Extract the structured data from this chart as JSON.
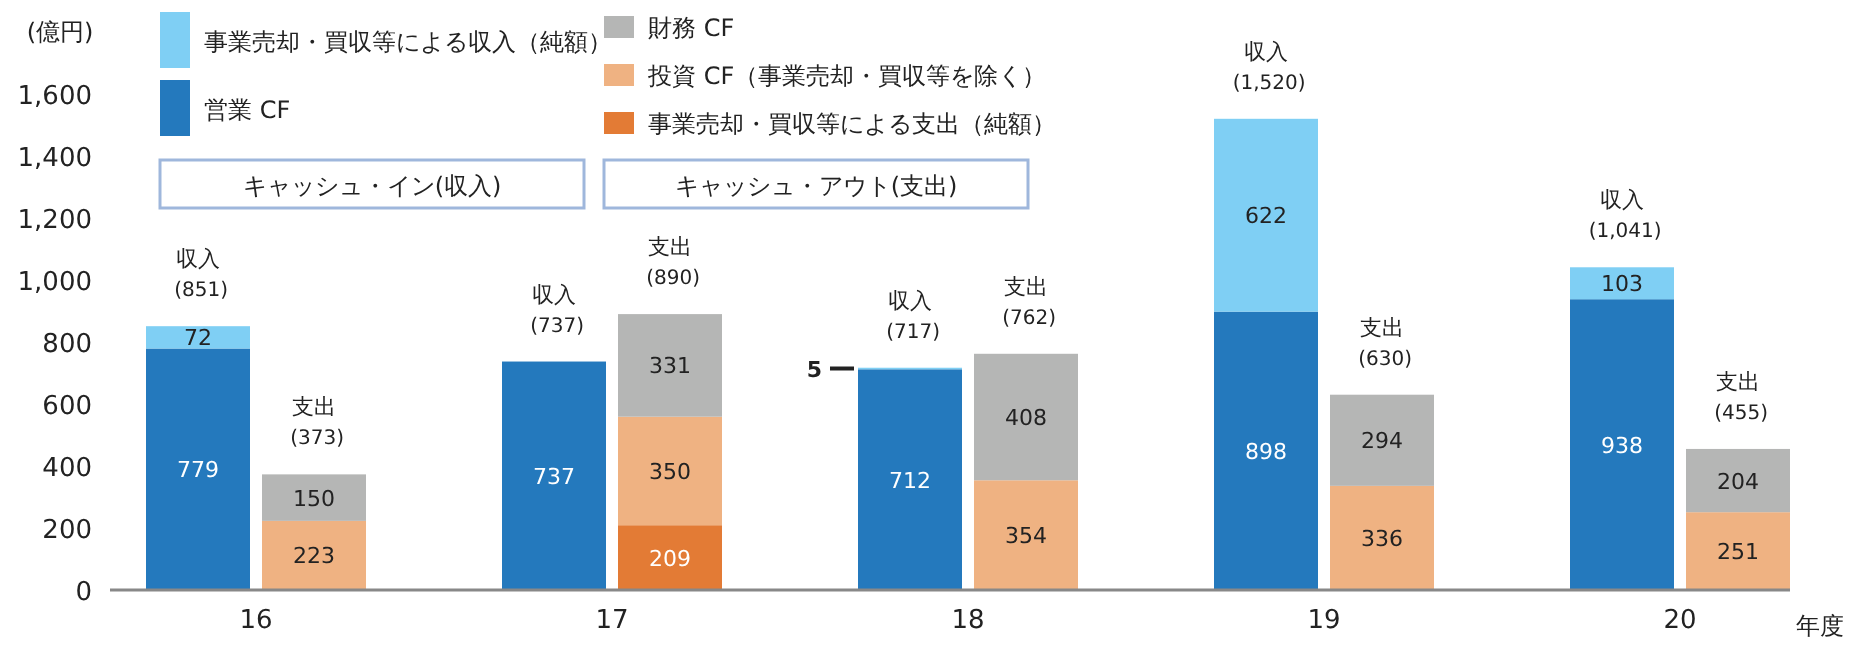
{
  "chart_data": {
    "type": "bar",
    "stacked": true,
    "ylabel": "(億円)",
    "xlabel": "年度",
    "categories": [
      "収入 (851)",
      "支出 (373)",
      "収入 (737)",
      "支出 (890)",
      "収入 (717)",
      "支出 (762)",
      "収入 (1,520)",
      "支出 (630)",
      "収入 (1,041)",
      "支出 (455)"
    ],
    "series": [
      {
        "name": "営業 CF",
        "color": "#2479bd",
        "values": [
          779,
          null,
          737,
          null,
          712,
          null,
          898,
          null,
          938,
          null
        ]
      },
      {
        "name": "事業売却・買収等による収入（純額）",
        "color": "#7fcff4",
        "values": [
          72,
          null,
          null,
          null,
          5,
          null,
          622,
          null,
          103,
          null
        ]
      },
      {
        "name": "事業売却・買収等による支出（純額）",
        "color": "#e37b35",
        "values": [
          null,
          null,
          null,
          209,
          null,
          null,
          null,
          null,
          null,
          null
        ]
      },
      {
        "name": "投資 CF（事業売却・買収等を除く）",
        "color": "#efb282",
        "values": [
          null,
          223,
          null,
          350,
          null,
          354,
          null,
          336,
          null,
          251
        ]
      },
      {
        "name": "財務 CF",
        "color": "#b5b6b5",
        "values": [
          null,
          150,
          null,
          331,
          null,
          408,
          null,
          294,
          null,
          204
        ]
      }
    ],
    "ylim": [
      0,
      1600
    ],
    "yticks": [
      0,
      200,
      400,
      600,
      800,
      {
        "value": 1000,
        "label": "1,000"
      },
      {
        "value": 1200,
        "label": "1,200"
      },
      {
        "value": 1400,
        "label": "1,400"
      },
      {
        "value": 1600,
        "label": "1,600"
      }
    ],
    "grid": false,
    "data_labels": true,
    "legend": "top left",
    "annotations": [
      "キャッシュ・イン(収入)",
      "キャッシュ・アウト(支出)",
      "16",
      "17",
      "18",
      "19",
      "20"
    ]
  }
}
